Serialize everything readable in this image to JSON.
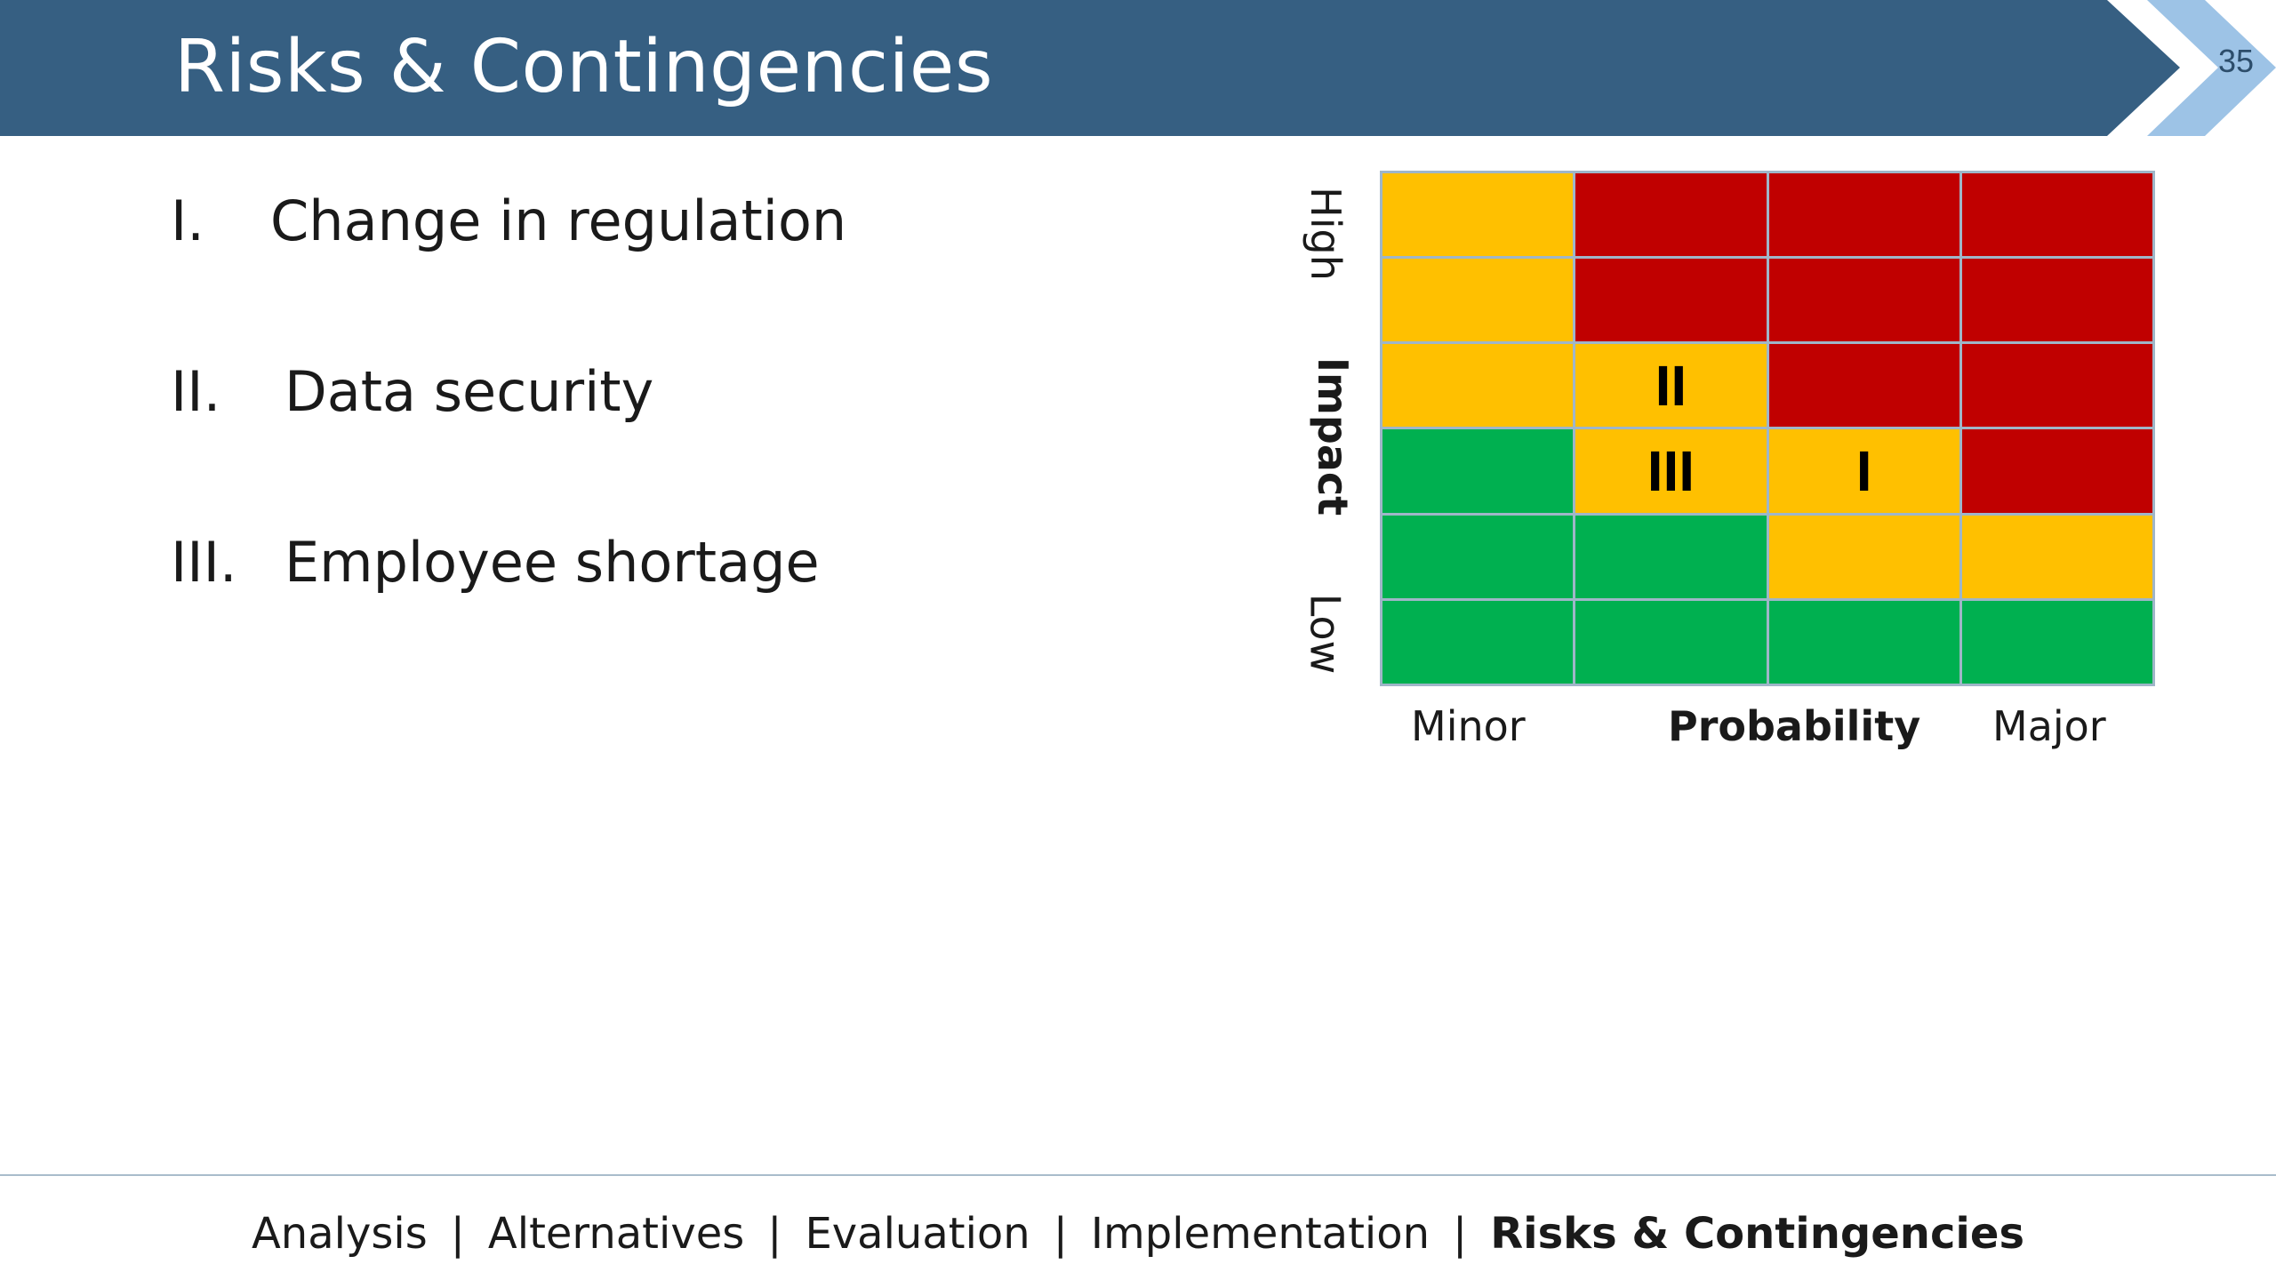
{
  "slide": {
    "title": "Risks & Contingencies",
    "page_number": "35"
  },
  "risks": [
    {
      "numeral": "I.",
      "label": "Change in regulation"
    },
    {
      "numeral": "II.",
      "label": "Data security"
    },
    {
      "numeral": "III.",
      "label": "Employee shortage"
    }
  ],
  "matrix": {
    "y_axis": {
      "high": "High",
      "title": "Impact",
      "low": "Low"
    },
    "x_axis": {
      "minor": "Minor",
      "title": "Probability",
      "major": "Major"
    },
    "colors": {
      "yellow": "#FFC000",
      "red": "#C00000",
      "green": "#00B050"
    },
    "rows": [
      [
        {
          "color": "yellow",
          "label": ""
        },
        {
          "color": "red",
          "label": ""
        },
        {
          "color": "red",
          "label": ""
        },
        {
          "color": "red",
          "label": ""
        }
      ],
      [
        {
          "color": "yellow",
          "label": ""
        },
        {
          "color": "red",
          "label": ""
        },
        {
          "color": "red",
          "label": ""
        },
        {
          "color": "red",
          "label": ""
        }
      ],
      [
        {
          "color": "yellow",
          "label": ""
        },
        {
          "color": "yellow",
          "label": "II"
        },
        {
          "color": "red",
          "label": ""
        },
        {
          "color": "red",
          "label": ""
        }
      ],
      [
        {
          "color": "green",
          "label": ""
        },
        {
          "color": "yellow",
          "label": "III"
        },
        {
          "color": "yellow",
          "label": "I"
        },
        {
          "color": "red",
          "label": ""
        }
      ],
      [
        {
          "color": "green",
          "label": ""
        },
        {
          "color": "green",
          "label": ""
        },
        {
          "color": "yellow",
          "label": ""
        },
        {
          "color": "yellow",
          "label": ""
        }
      ],
      [
        {
          "color": "green",
          "label": ""
        },
        {
          "color": "green",
          "label": ""
        },
        {
          "color": "green",
          "label": ""
        },
        {
          "color": "green",
          "label": ""
        }
      ]
    ]
  },
  "footer_nav": {
    "separator": "|",
    "items": [
      "Analysis",
      "Alternatives",
      "Evaluation",
      "Implementation",
      "Risks & Contingencies"
    ],
    "active": "Risks & Contingencies"
  },
  "theme": {
    "title_bar": "#365F82",
    "chevron": "#9DC3E6"
  }
}
